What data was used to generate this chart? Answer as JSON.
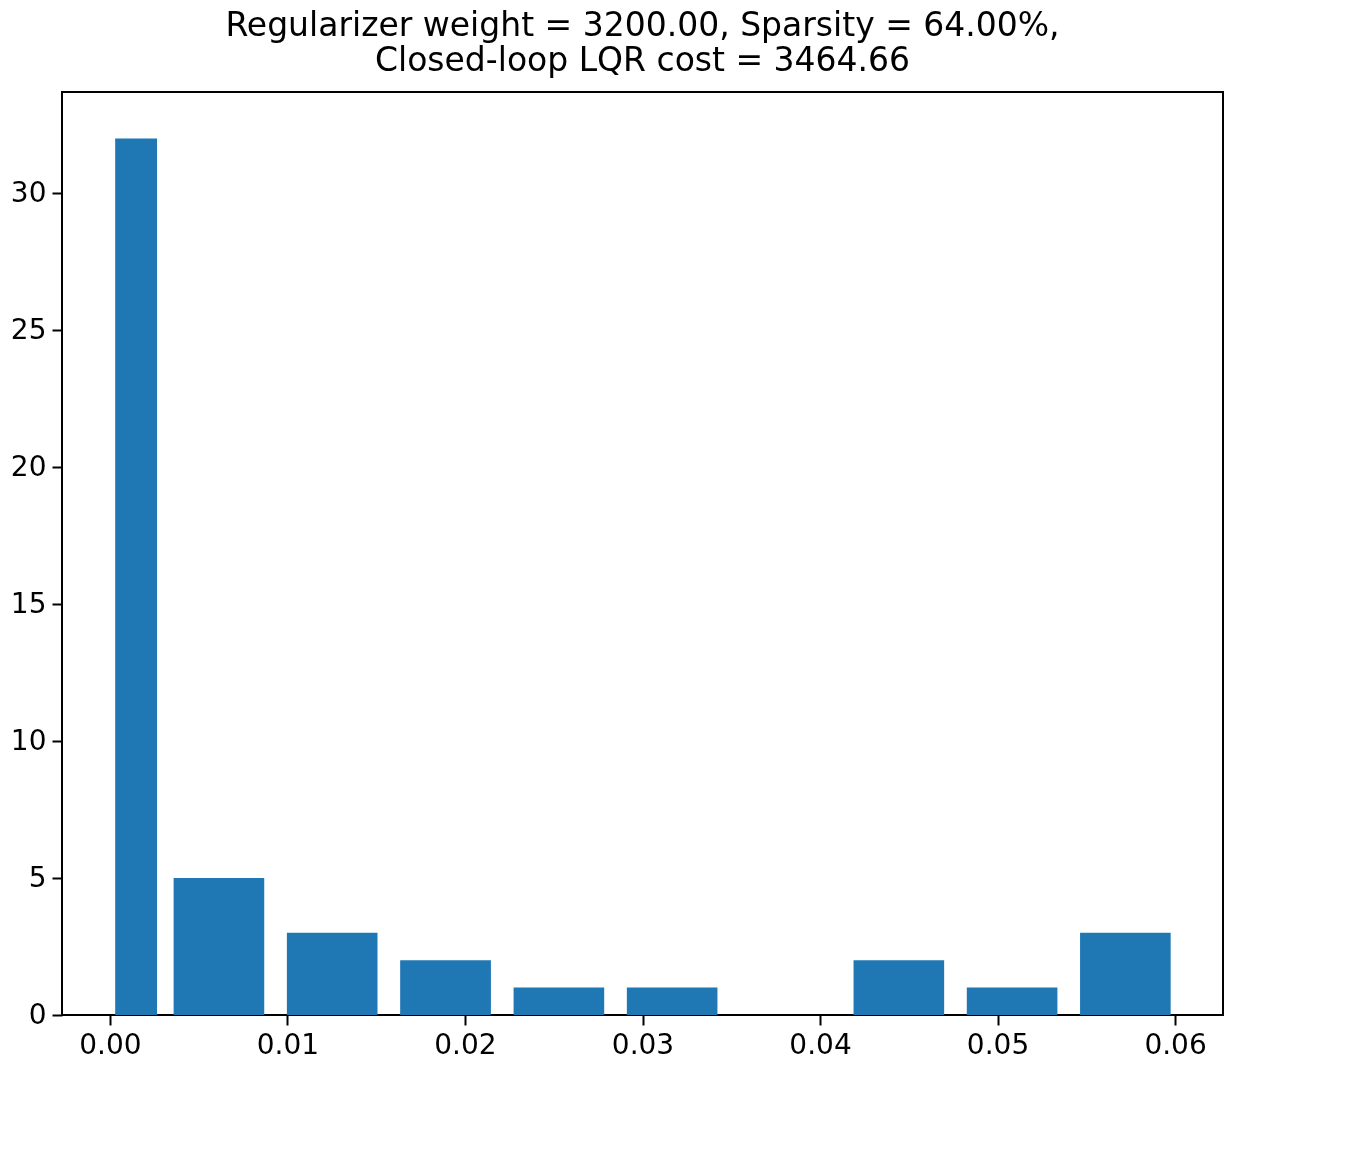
{
  "chart_data": {
    "type": "histogram",
    "title": "Regularizer weight = 3200.00, Sparsity = 64.00%,\nClosed-loop LQR cost = 3464.66",
    "bins": [
      0,
      0.00295,
      0.00933,
      0.01571,
      0.0221,
      0.02848,
      0.03486,
      0.04125,
      0.04763,
      0.05401,
      0.06039
    ],
    "values": [
      32,
      5,
      3,
      2,
      1,
      1,
      0,
      2,
      1,
      3
    ],
    "color": "#1f77b4",
    "xlim": [
      -0.0027,
      0.0627
    ],
    "xticks": [
      {
        "value": 0,
        "label": "0.00"
      },
      {
        "value": 0.01,
        "label": "0.01"
      },
      {
        "value": 0.02,
        "label": "0.02"
      },
      {
        "value": 0.03,
        "label": "0.03"
      },
      {
        "value": 0.04,
        "label": "0.04"
      },
      {
        "value": 0.05,
        "label": "0.05"
      },
      {
        "value": 0.06,
        "label": "0.06"
      }
    ],
    "ylim": [
      0,
      33.7
    ],
    "yticks": [
      0,
      5,
      10,
      15,
      20,
      25,
      30
    ],
    "grid": false
  }
}
